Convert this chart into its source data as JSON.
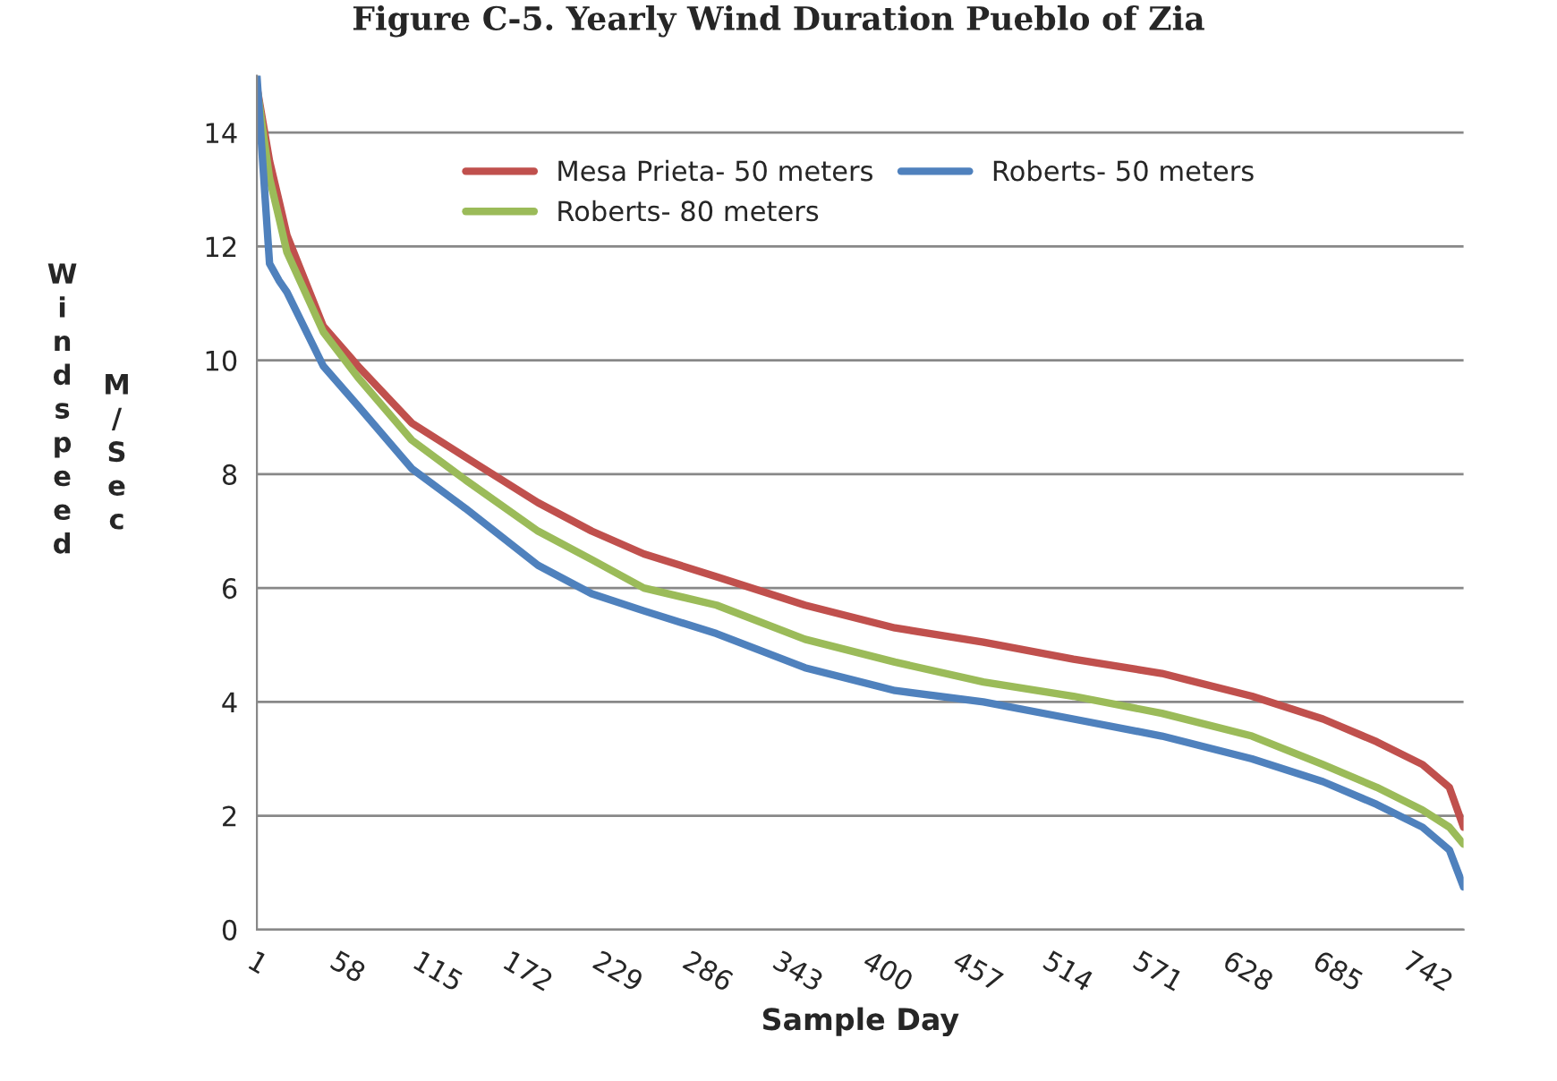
{
  "chart_data": {
    "type": "line",
    "title": "Figure C-5. Yearly Wind Duration Pueblo of Zia",
    "xlabel": "Sample Day",
    "ylabel": "Windspeed M/Sec",
    "x": [
      1,
      9,
      15,
      20,
      43,
      65,
      99,
      133,
      179,
      213,
      246,
      292,
      348,
      405,
      461,
      518,
      574,
      631,
      676,
      710,
      739,
      756,
      765
    ],
    "series": [
      {
        "name": "Mesa Prieta- 50 meters",
        "color": "#c0504d",
        "values": [
          14.8,
          13.5,
          12.8,
          12.2,
          10.6,
          9.9,
          8.9,
          8.3,
          7.5,
          7.0,
          6.6,
          6.2,
          5.7,
          5.3,
          5.05,
          4.75,
          4.5,
          4.1,
          3.7,
          3.3,
          2.9,
          2.5,
          1.8
        ]
      },
      {
        "name": "Roberts- 80 meters",
        "color": "#9bbb59",
        "values": [
          14.8,
          13.2,
          12.5,
          11.9,
          10.5,
          9.7,
          8.6,
          7.9,
          7.0,
          6.5,
          6.0,
          5.7,
          5.1,
          4.7,
          4.35,
          4.1,
          3.8,
          3.4,
          2.9,
          2.5,
          2.1,
          1.8,
          1.5
        ]
      },
      {
        "name": "Roberts- 50 meters",
        "color": "#4f81bd",
        "values": [
          15,
          11.7,
          11.4,
          11.2,
          9.9,
          9.2,
          8.1,
          7.4,
          6.4,
          5.9,
          5.6,
          5.2,
          4.6,
          4.2,
          4.0,
          3.7,
          3.4,
          3.0,
          2.6,
          2.2,
          1.8,
          1.4,
          0.75
        ]
      }
    ],
    "xlim": [
      1,
      765
    ],
    "xticks": [
      1,
      58,
      115,
      172,
      229,
      286,
      343,
      400,
      457,
      514,
      571,
      628,
      685,
      742
    ],
    "ylim": [
      0,
      15
    ],
    "yticks": [
      0,
      2,
      4,
      6,
      8,
      10,
      12,
      14
    ],
    "grid": "y",
    "legend": "top",
    "marker": "none",
    "line_style": "solid"
  }
}
